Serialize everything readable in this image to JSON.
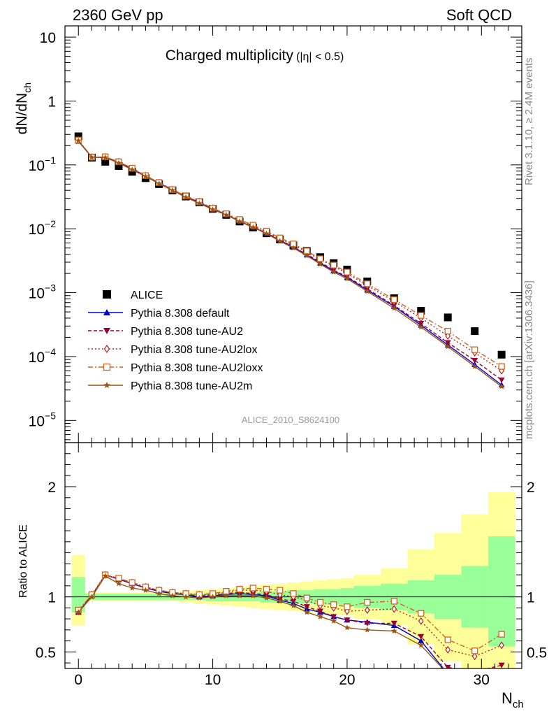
{
  "header": {
    "left": "2360 GeV pp",
    "right": "Soft QCD"
  },
  "side_text": {
    "rivet": "Rivet 3.1.10, ≥ 2.4M events",
    "site": "mcplots.cern.ch [arXiv:1306.3436]"
  },
  "chart_data": [
    {
      "type": "scatter",
      "title": "Charged multiplicity",
      "title_suffix": "(|η| < 0.5)",
      "ylabel": "dN/dN",
      "ylabel_sub": "ch",
      "analysis_id": "ALICE_2010_S8624100",
      "yscale": "log",
      "ylim": [
        4.5e-06,
        15
      ],
      "xlim": [
        -1,
        33
      ],
      "y_ticks": [
        {
          "value": 10,
          "label": "10"
        },
        {
          "value": 1,
          "label": "1"
        },
        {
          "value": 0.1,
          "base": "10",
          "exp": "−1"
        },
        {
          "value": 0.01,
          "base": "10",
          "exp": "−2"
        },
        {
          "value": 0.001,
          "base": "10",
          "exp": "−3"
        },
        {
          "value": 0.0001,
          "base": "10",
          "exp": "−4"
        },
        {
          "value": 1e-05,
          "base": "10",
          "exp": "−5"
        }
      ],
      "legend_position": "lower-left",
      "series": [
        {
          "name": "ALICE",
          "color": "#000000",
          "marker": "square",
          "style": "none",
          "x": [
            0,
            1,
            2,
            3,
            4,
            5,
            6,
            7,
            8,
            9,
            10,
            11,
            12,
            13,
            14,
            15,
            16,
            17,
            18,
            19,
            20,
            21.5,
            23.5,
            25.5,
            27.5,
            29.5,
            31.5
          ],
          "y": [
            0.28,
            0.13,
            0.112,
            0.096,
            0.078,
            0.062,
            0.05,
            0.04,
            0.032,
            0.026,
            0.0205,
            0.0165,
            0.013,
            0.0105,
            0.0085,
            0.0068,
            0.0055,
            0.0045,
            0.0036,
            0.0029,
            0.0023,
            0.0015,
            0.00082,
            0.00052,
            0.00041,
            0.00025,
            0.000107
          ]
        },
        {
          "name": "Pythia 8.308 default",
          "color": "#0000cc",
          "marker": "triangle-up",
          "style": "solid",
          "x": [
            0,
            1,
            2,
            3,
            4,
            5,
            6,
            7,
            8,
            9,
            10,
            11,
            12,
            13,
            14,
            15,
            16,
            17,
            18,
            19,
            20,
            21.5,
            23.5,
            25.5,
            27.5,
            29.5,
            31.5
          ],
          "y": [
            0.235,
            0.132,
            0.131,
            0.11,
            0.087,
            0.067,
            0.052,
            0.041,
            0.032,
            0.0255,
            0.0205,
            0.0167,
            0.0131,
            0.0106,
            0.0085,
            0.0066,
            0.00515,
            0.0039,
            0.0029,
            0.0022,
            0.00173,
            0.0011,
            0.00061,
            0.00031,
            0.000152,
            7.5e-05,
            3.6e-05
          ]
        },
        {
          "name": "Pythia 8.308 tune-AU2",
          "color": "#990033",
          "marker": "triangle-down",
          "style": "dashed",
          "x": [
            0,
            1,
            2,
            3,
            4,
            5,
            6,
            7,
            8,
            9,
            10,
            11,
            12,
            13,
            14,
            15,
            16,
            17,
            18,
            19,
            20,
            21.5,
            23.5,
            25.5,
            27.5,
            29.5,
            31.5
          ],
          "y": [
            0.24,
            0.131,
            0.133,
            0.111,
            0.088,
            0.067,
            0.052,
            0.041,
            0.032,
            0.026,
            0.0205,
            0.0168,
            0.0132,
            0.0107,
            0.0086,
            0.0067,
            0.0052,
            0.004,
            0.003,
            0.00226,
            0.00178,
            0.00115,
            0.00063,
            0.00033,
            0.000165,
            8.7e-05,
            4.3e-05
          ]
        },
        {
          "name": "Pythia 8.308 tune-AU2lox",
          "color": "#bb2222",
          "marker": "diamond-open",
          "style": "dotted",
          "x": [
            0,
            1,
            2,
            3,
            4,
            5,
            6,
            7,
            8,
            9,
            10,
            11,
            12,
            13,
            14,
            15,
            16,
            17,
            18,
            19,
            20,
            21.5,
            23.5,
            25.5,
            27.5,
            29.5,
            31.5
          ],
          "y": [
            0.245,
            0.132,
            0.133,
            0.112,
            0.088,
            0.068,
            0.053,
            0.041,
            0.0325,
            0.0265,
            0.021,
            0.017,
            0.0137,
            0.0111,
            0.009,
            0.007,
            0.0056,
            0.0043,
            0.0033,
            0.0026,
            0.002,
            0.0013,
            0.00073,
            0.0004,
            0.00021,
            0.000115,
            6e-05
          ]
        },
        {
          "name": "Pythia 8.308 tune-AU2loxx",
          "color": "#cc6622",
          "marker": "square-open",
          "style": "dashdot",
          "x": [
            0,
            1,
            2,
            3,
            4,
            5,
            6,
            7,
            8,
            9,
            10,
            11,
            12,
            13,
            14,
            15,
            16,
            17,
            18,
            19,
            20,
            21.5,
            23.5,
            25.5,
            27.5,
            29.5,
            31.5
          ],
          "y": [
            0.245,
            0.132,
            0.134,
            0.112,
            0.089,
            0.068,
            0.053,
            0.041,
            0.0326,
            0.0266,
            0.021,
            0.0172,
            0.014,
            0.0114,
            0.0092,
            0.0072,
            0.0058,
            0.0045,
            0.0034,
            0.0027,
            0.0021,
            0.00138,
            0.00078,
            0.00044,
            0.00025,
            0.000128,
            7e-05
          ]
        },
        {
          "name": "Pythia 8.308 tune-AU2m",
          "color": "#995511",
          "marker": "star",
          "style": "solid",
          "x": [
            0,
            1,
            2,
            3,
            4,
            5,
            6,
            7,
            8,
            9,
            10,
            11,
            12,
            13,
            14,
            15,
            16,
            17,
            18,
            19,
            20,
            21.5,
            23.5,
            25.5,
            27.5,
            29.5,
            31.5
          ],
          "y": [
            0.24,
            0.131,
            0.13,
            0.107,
            0.084,
            0.066,
            0.051,
            0.04,
            0.031,
            0.025,
            0.02,
            0.0165,
            0.013,
            0.0105,
            0.0084,
            0.0064,
            0.005,
            0.0038,
            0.0028,
            0.0021,
            0.00165,
            0.00105,
            0.00057,
            0.00029,
            0.000143,
            7e-05,
            3.4e-05
          ]
        }
      ]
    },
    {
      "type": "scatter",
      "ylabel": "Ratio to ALICE",
      "xlabel": "N",
      "xlabel_sub": "ch",
      "ylim": [
        0.35,
        2.4
      ],
      "xlim": [
        -1,
        33
      ],
      "x_ticks": [
        0,
        10,
        20,
        30
      ],
      "y_ticks": [
        0.5,
        1,
        2
      ],
      "bands": {
        "x_edges": [
          -0.5,
          0.5,
          1.5,
          2.5,
          3.5,
          4.5,
          5.5,
          6.5,
          7.5,
          8.5,
          9.5,
          10.5,
          11.5,
          12.5,
          13.5,
          14.5,
          15.5,
          16.5,
          17.5,
          18.5,
          19.5,
          20.5,
          22.5,
          24.5,
          26.5,
          28.5,
          30.5,
          32.5
        ],
        "inner_low": [
          0.86,
          0.97,
          0.97,
          0.97,
          0.97,
          0.97,
          0.97,
          0.97,
          0.97,
          0.97,
          0.96,
          0.96,
          0.96,
          0.96,
          0.95,
          0.95,
          0.94,
          0.94,
          0.93,
          0.93,
          0.92,
          0.9,
          0.88,
          0.85,
          0.8,
          0.72,
          0.55
        ],
        "inner_high": [
          1.18,
          1.03,
          1.03,
          1.03,
          1.03,
          1.03,
          1.03,
          1.03,
          1.03,
          1.03,
          1.04,
          1.04,
          1.04,
          1.04,
          1.05,
          1.05,
          1.06,
          1.06,
          1.07,
          1.07,
          1.08,
          1.1,
          1.12,
          1.15,
          1.2,
          1.28,
          1.55
        ],
        "outer_low": [
          0.74,
          0.96,
          0.96,
          0.96,
          0.96,
          0.96,
          0.96,
          0.96,
          0.95,
          0.94,
          0.93,
          0.92,
          0.91,
          0.9,
          0.89,
          0.88,
          0.87,
          0.86,
          0.85,
          0.84,
          0.83,
          0.8,
          0.74,
          0.57,
          0.42,
          0.35,
          0.35
        ],
        "outer_high": [
          1.38,
          1.04,
          1.04,
          1.04,
          1.04,
          1.04,
          1.04,
          1.04,
          1.05,
          1.06,
          1.07,
          1.08,
          1.09,
          1.1,
          1.11,
          1.12,
          1.13,
          1.14,
          1.15,
          1.16,
          1.17,
          1.2,
          1.26,
          1.43,
          1.58,
          1.75,
          1.95
        ]
      },
      "series": [
        {
          "name": "Pythia 8.308 default",
          "color": "#0000cc",
          "marker": "triangle-up",
          "style": "solid",
          "x": [
            0,
            1,
            2,
            3,
            4,
            5,
            6,
            7,
            8,
            9,
            10,
            11,
            12,
            13,
            14,
            15,
            16,
            17,
            18,
            19,
            20,
            21.5,
            23.5,
            25.5,
            27.5,
            29.5,
            31.5
          ],
          "y": [
            0.86,
            1.01,
            1.2,
            1.16,
            1.12,
            1.08,
            1.05,
            1.03,
            1.02,
            1.0,
            1.01,
            1.02,
            1.03,
            1.02,
            1.01,
            0.97,
            0.94,
            0.89,
            0.86,
            0.82,
            0.79,
            0.77,
            0.74,
            0.6,
            0.3,
            0.3,
            0.3
          ]
        },
        {
          "name": "Pythia 8.308 tune-AU2",
          "color": "#990033",
          "marker": "triangle-down",
          "style": "dashed",
          "x": [
            0,
            1,
            2,
            3,
            4,
            5,
            6,
            7,
            8,
            9,
            10,
            11,
            12,
            13,
            14,
            15,
            16,
            17,
            18,
            19,
            20,
            21.5,
            23.5,
            25.5,
            27.5,
            29.5,
            31.5
          ],
          "y": [
            0.86,
            1.01,
            1.2,
            1.16,
            1.12,
            1.08,
            1.06,
            1.04,
            1.02,
            1.01,
            1.01,
            1.03,
            1.04,
            1.03,
            1.02,
            0.98,
            0.96,
            0.91,
            0.87,
            0.82,
            0.79,
            0.76,
            0.76,
            0.64,
            0.36,
            0.32,
            0.38
          ]
        },
        {
          "name": "Pythia 8.308 tune-AU2lox",
          "color": "#bb2222",
          "marker": "diamond-open",
          "style": "dotted",
          "x": [
            0,
            1,
            2,
            3,
            4,
            5,
            6,
            7,
            8,
            9,
            10,
            11,
            12,
            13,
            14,
            15,
            16,
            17,
            18,
            19,
            20,
            21.5,
            23.5,
            25.5,
            27.5,
            29.5,
            31.5
          ],
          "y": [
            0.87,
            1.02,
            1.2,
            1.16,
            1.13,
            1.09,
            1.06,
            1.04,
            1.03,
            1.02,
            1.02,
            1.04,
            1.06,
            1.06,
            1.05,
            1.02,
            1.0,
            0.97,
            0.92,
            0.9,
            0.87,
            0.88,
            0.89,
            0.78,
            0.52,
            0.46,
            0.56
          ]
        },
        {
          "name": "Pythia 8.308 tune-AU2loxx",
          "color": "#cc6622",
          "marker": "square-open",
          "style": "dashdot",
          "x": [
            0,
            1,
            2,
            3,
            4,
            5,
            6,
            7,
            8,
            9,
            10,
            11,
            12,
            13,
            14,
            15,
            16,
            17,
            18,
            19,
            20,
            21.5,
            23.5,
            25.5,
            27.5,
            29.5,
            31.5
          ],
          "y": [
            0.88,
            1.02,
            1.2,
            1.17,
            1.13,
            1.09,
            1.06,
            1.04,
            1.03,
            1.02,
            1.03,
            1.05,
            1.07,
            1.08,
            1.07,
            1.06,
            1.03,
            0.99,
            0.95,
            0.93,
            0.91,
            0.95,
            0.96,
            0.85,
            0.61,
            0.51,
            0.66
          ]
        },
        {
          "name": "Pythia 8.308 tune-AU2m",
          "color": "#995511",
          "marker": "star",
          "style": "solid",
          "x": [
            0,
            1,
            2,
            3,
            4,
            5,
            6,
            7,
            8,
            9,
            10,
            11,
            12,
            13,
            14,
            15,
            16,
            17,
            18,
            19,
            20,
            21.5,
            23.5,
            25.5,
            27.5,
            29.5,
            31.5
          ],
          "y": [
            0.86,
            1.0,
            1.19,
            1.12,
            1.08,
            1.06,
            1.03,
            1.01,
            1.0,
            0.99,
            1.0,
            1.01,
            1.01,
            1.01,
            0.99,
            0.96,
            0.92,
            0.86,
            0.82,
            0.78,
            0.72,
            0.7,
            0.69,
            0.56,
            0.3,
            0.3,
            0.3
          ]
        }
      ]
    }
  ]
}
